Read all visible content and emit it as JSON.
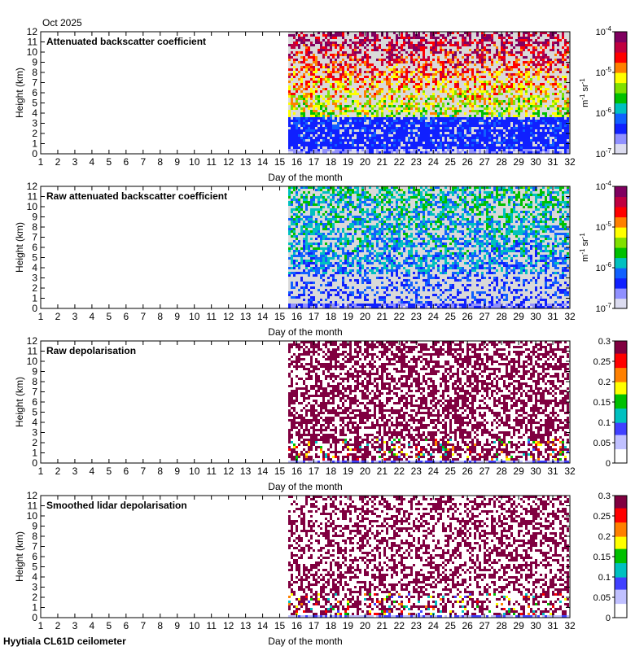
{
  "header": {
    "date": "Oct 2025"
  },
  "footer": {
    "site": "Hyytiala CL61D ceilometer"
  },
  "colors": {
    "nodata_fill": "#d9d9d9",
    "background": "#ffffff",
    "axis": "#000000"
  },
  "colormaps": {
    "backscatter": [
      "#dcdcf0",
      "#9090ff",
      "#1020ff",
      "#1060ff",
      "#00c0c0",
      "#00c000",
      "#80e000",
      "#ffff00",
      "#ff8000",
      "#ff0000",
      "#c00040",
      "#800060"
    ],
    "depol": [
      "#ffffff",
      "#c0c0ff",
      "#4040ff",
      "#00c0c0",
      "#00c000",
      "#ffff00",
      "#ff8000",
      "#ff0000",
      "#800040"
    ]
  },
  "chart_data": [
    {
      "type": "heatmap",
      "title": "Attenuated backscatter coefficient",
      "xlabel": "Day of the month",
      "ylabel": "Height (km)",
      "xlim": [
        1,
        32
      ],
      "ylim": [
        0,
        12
      ],
      "xticks": [
        "1",
        "2",
        "3",
        "4",
        "5",
        "6",
        "7",
        "8",
        "9",
        "10",
        "11",
        "12",
        "13",
        "14",
        "15",
        "16",
        "17",
        "18",
        "19",
        "20",
        "21",
        "22",
        "23",
        "24",
        "25",
        "26",
        "27",
        "28",
        "29",
        "30",
        "31",
        "32"
      ],
      "yticks": [
        "0",
        "1",
        "2",
        "3",
        "4",
        "5",
        "6",
        "7",
        "8",
        "9",
        "10",
        "11",
        "12"
      ],
      "data_start_day": 15.5,
      "colorbar": {
        "scale": "log",
        "range": [
          1e-07,
          0.0001
        ],
        "ticks": [
          "10^-7",
          "10^-6",
          "10^-5",
          "10^-4"
        ],
        "unit": "m^-1 sr^-1"
      },
      "colormap": "backscatter"
    },
    {
      "type": "heatmap",
      "title": "Raw attenuated backscatter coefficient",
      "xlabel": "Day of the month",
      "ylabel": "Height (km)",
      "xlim": [
        1,
        32
      ],
      "ylim": [
        0,
        12
      ],
      "xticks": [
        "1",
        "2",
        "3",
        "4",
        "5",
        "6",
        "7",
        "8",
        "9",
        "10",
        "11",
        "12",
        "13",
        "14",
        "15",
        "16",
        "17",
        "18",
        "19",
        "20",
        "21",
        "22",
        "23",
        "24",
        "25",
        "26",
        "27",
        "28",
        "29",
        "30",
        "31",
        "32"
      ],
      "yticks": [
        "0",
        "1",
        "2",
        "3",
        "4",
        "5",
        "6",
        "7",
        "8",
        "9",
        "10",
        "11",
        "12"
      ],
      "data_start_day": 15.5,
      "colorbar": {
        "scale": "log",
        "range": [
          1e-07,
          0.0001
        ],
        "ticks": [
          "10^-7",
          "10^-6",
          "10^-5",
          "10^-4"
        ],
        "unit": "m^-1 sr^-1"
      },
      "colormap": "backscatter"
    },
    {
      "type": "heatmap",
      "title": "Raw depolarisation",
      "xlabel": "Day of the month",
      "ylabel": "Height (km)",
      "xlim": [
        1,
        32
      ],
      "ylim": [
        0,
        12
      ],
      "xticks": [
        "1",
        "2",
        "3",
        "4",
        "5",
        "6",
        "7",
        "8",
        "9",
        "10",
        "11",
        "12",
        "13",
        "14",
        "15",
        "16",
        "17",
        "18",
        "19",
        "20",
        "21",
        "22",
        "23",
        "24",
        "25",
        "26",
        "27",
        "28",
        "29",
        "30",
        "31",
        "32"
      ],
      "yticks": [
        "0",
        "1",
        "2",
        "3",
        "4",
        "5",
        "6",
        "7",
        "8",
        "9",
        "10",
        "11",
        "12"
      ],
      "data_start_day": 15.5,
      "colorbar": {
        "scale": "linear",
        "range": [
          0,
          0.3
        ],
        "ticks": [
          "0",
          "0.05",
          "0.1",
          "0.15",
          "0.2",
          "0.25",
          "0.3"
        ],
        "unit": ""
      },
      "colormap": "depol"
    },
    {
      "type": "heatmap",
      "title": "Smoothed lidar depolarisation",
      "xlabel": "Day of the month",
      "ylabel": "Height (km)",
      "xlim": [
        1,
        32
      ],
      "ylim": [
        0,
        12
      ],
      "xticks": [
        "1",
        "2",
        "3",
        "4",
        "5",
        "6",
        "7",
        "8",
        "9",
        "10",
        "11",
        "12",
        "13",
        "14",
        "15",
        "16",
        "17",
        "18",
        "19",
        "20",
        "21",
        "22",
        "23",
        "24",
        "25",
        "26",
        "27",
        "28",
        "29",
        "30",
        "31",
        "32"
      ],
      "yticks": [
        "0",
        "1",
        "2",
        "3",
        "4",
        "5",
        "6",
        "7",
        "8",
        "9",
        "10",
        "11",
        "12"
      ],
      "data_start_day": 15.5,
      "colorbar": {
        "scale": "linear",
        "range": [
          0,
          0.3
        ],
        "ticks": [
          "0",
          "0.05",
          "0.1",
          "0.15",
          "0.2",
          "0.25",
          "0.3"
        ],
        "unit": ""
      },
      "colormap": "depol"
    }
  ]
}
